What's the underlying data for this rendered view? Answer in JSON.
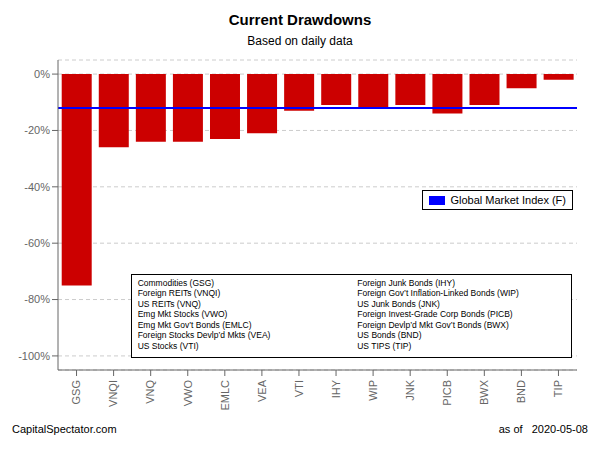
{
  "chart_data": {
    "type": "bar",
    "title": "Current Drawdowns",
    "subtitle": "Based on daily data",
    "categories": [
      "GSG",
      "VNQI",
      "VNQ",
      "VWO",
      "EMLC",
      "VEA",
      "VTI",
      "IHY",
      "WIP",
      "JNK",
      "PICB",
      "BWX",
      "BND",
      "TIP"
    ],
    "values": [
      -75.0,
      -26.0,
      -24.0,
      -24.0,
      -23.0,
      -21.0,
      -13.0,
      -11.0,
      -12.0,
      -11.0,
      -14.0,
      -11.0,
      -5.0,
      -2.0
    ],
    "color": "#cc0000",
    "reference_line": {
      "name": "Global Market Index (F)",
      "value": -12.0,
      "color": "#0000ff"
    },
    "ylim": [
      -105,
      5
    ],
    "yticks": [
      {
        "value": 0,
        "label": "0%"
      },
      {
        "value": -20,
        "label": "-20%"
      },
      {
        "value": -40,
        "label": "-40%"
      },
      {
        "value": -60,
        "label": "-60%"
      },
      {
        "value": -80,
        "label": "-80%"
      },
      {
        "value": -100,
        "label": "-100%"
      }
    ],
    "grid": true,
    "legend": "right",
    "annotations": [
      "Commodities (GSG)\nForeign REITs (VNQI)\nUS REITs (VNQ)\nEmg Mkt Stocks (VWO)\nEmg Mkt Gov’t Bonds (EMLC)\nForeign Stocks Devlp’d Mkts (VEA)\nUS Stocks (VTI)",
      "Foreign Junk Bonds (IHY)\nForeign Gov’t Inflation-Linked Bonds (WIP)\nUS Junk Bonds (JNK)\nForeign Invest-Grade Corp Bonds (PICB)\nForeign Devlp’d Mkt Gov’t Bonds (BWX)\nUS Bonds (BND)\nUS TIPS (TIP)"
    ],
    "footnotes": [
      "CapitalSpectator.com",
      "as of   2020-05-08"
    ]
  }
}
